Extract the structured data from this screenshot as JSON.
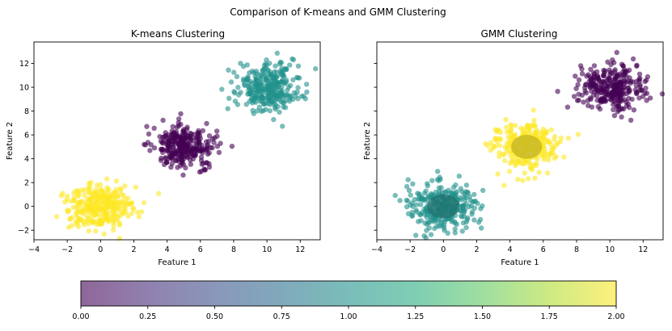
{
  "figure": {
    "suptitle": "Comparison of K-means and GMM Clustering"
  },
  "chart_data": [
    {
      "type": "scatter",
      "title": "K-means Clustering",
      "xlabel": "Feature 1",
      "ylabel": "Feature 2",
      "xlim": [
        -4,
        13.2
      ],
      "ylim": [
        -2.8,
        13.8
      ],
      "xticks": [
        -4,
        -2,
        0,
        2,
        4,
        6,
        8,
        10,
        12
      ],
      "yticks": [
        -2,
        0,
        2,
        4,
        6,
        8,
        10,
        12
      ],
      "clusters": [
        {
          "center": [
            0,
            0
          ],
          "spread": 1.0,
          "n": 300,
          "color_value": 2
        },
        {
          "center": [
            5,
            5
          ],
          "spread": 0.95,
          "n": 300,
          "color_value": 0
        },
        {
          "center": [
            10,
            10
          ],
          "spread": 1.0,
          "n": 300,
          "color_value": 1
        }
      ],
      "point_alpha": 0.6
    },
    {
      "type": "scatter",
      "title": "GMM Clustering",
      "xlabel": "Feature 1",
      "ylabel": "Feature 2",
      "xlim": [
        -4,
        13.2
      ],
      "ylim": [
        -2.8,
        13.8
      ],
      "xticks": [
        -4,
        -2,
        0,
        2,
        4,
        6,
        8,
        10,
        12
      ],
      "yticks": [
        -2,
        0,
        2,
        4,
        6,
        8,
        10,
        12
      ],
      "clusters": [
        {
          "center": [
            0,
            0
          ],
          "spread": 1.0,
          "n": 300,
          "color_value": 1
        },
        {
          "center": [
            5,
            5
          ],
          "spread": 0.95,
          "n": 300,
          "color_value": 2
        },
        {
          "center": [
            10,
            10
          ],
          "spread": 1.0,
          "n": 300,
          "color_value": 0
        }
      ],
      "ellipses": [
        {
          "center": [
            0,
            0
          ],
          "width": 1.95,
          "height": 2.0,
          "color_value": 1
        },
        {
          "center": [
            5,
            5
          ],
          "width": 1.85,
          "height": 2.0,
          "color_value": 2
        }
      ],
      "point_alpha": 0.6
    }
  ],
  "colorbar": {
    "min": 0,
    "max": 2,
    "ticks": [
      "0.00",
      "0.25",
      "0.50",
      "0.75",
      "1.00",
      "1.25",
      "1.50",
      "1.75",
      "2.00"
    ],
    "alpha": 0.6
  },
  "colors": {
    "viridis_0": "#440154",
    "viridis_1": "#21918c",
    "viridis_2": "#fde725"
  }
}
